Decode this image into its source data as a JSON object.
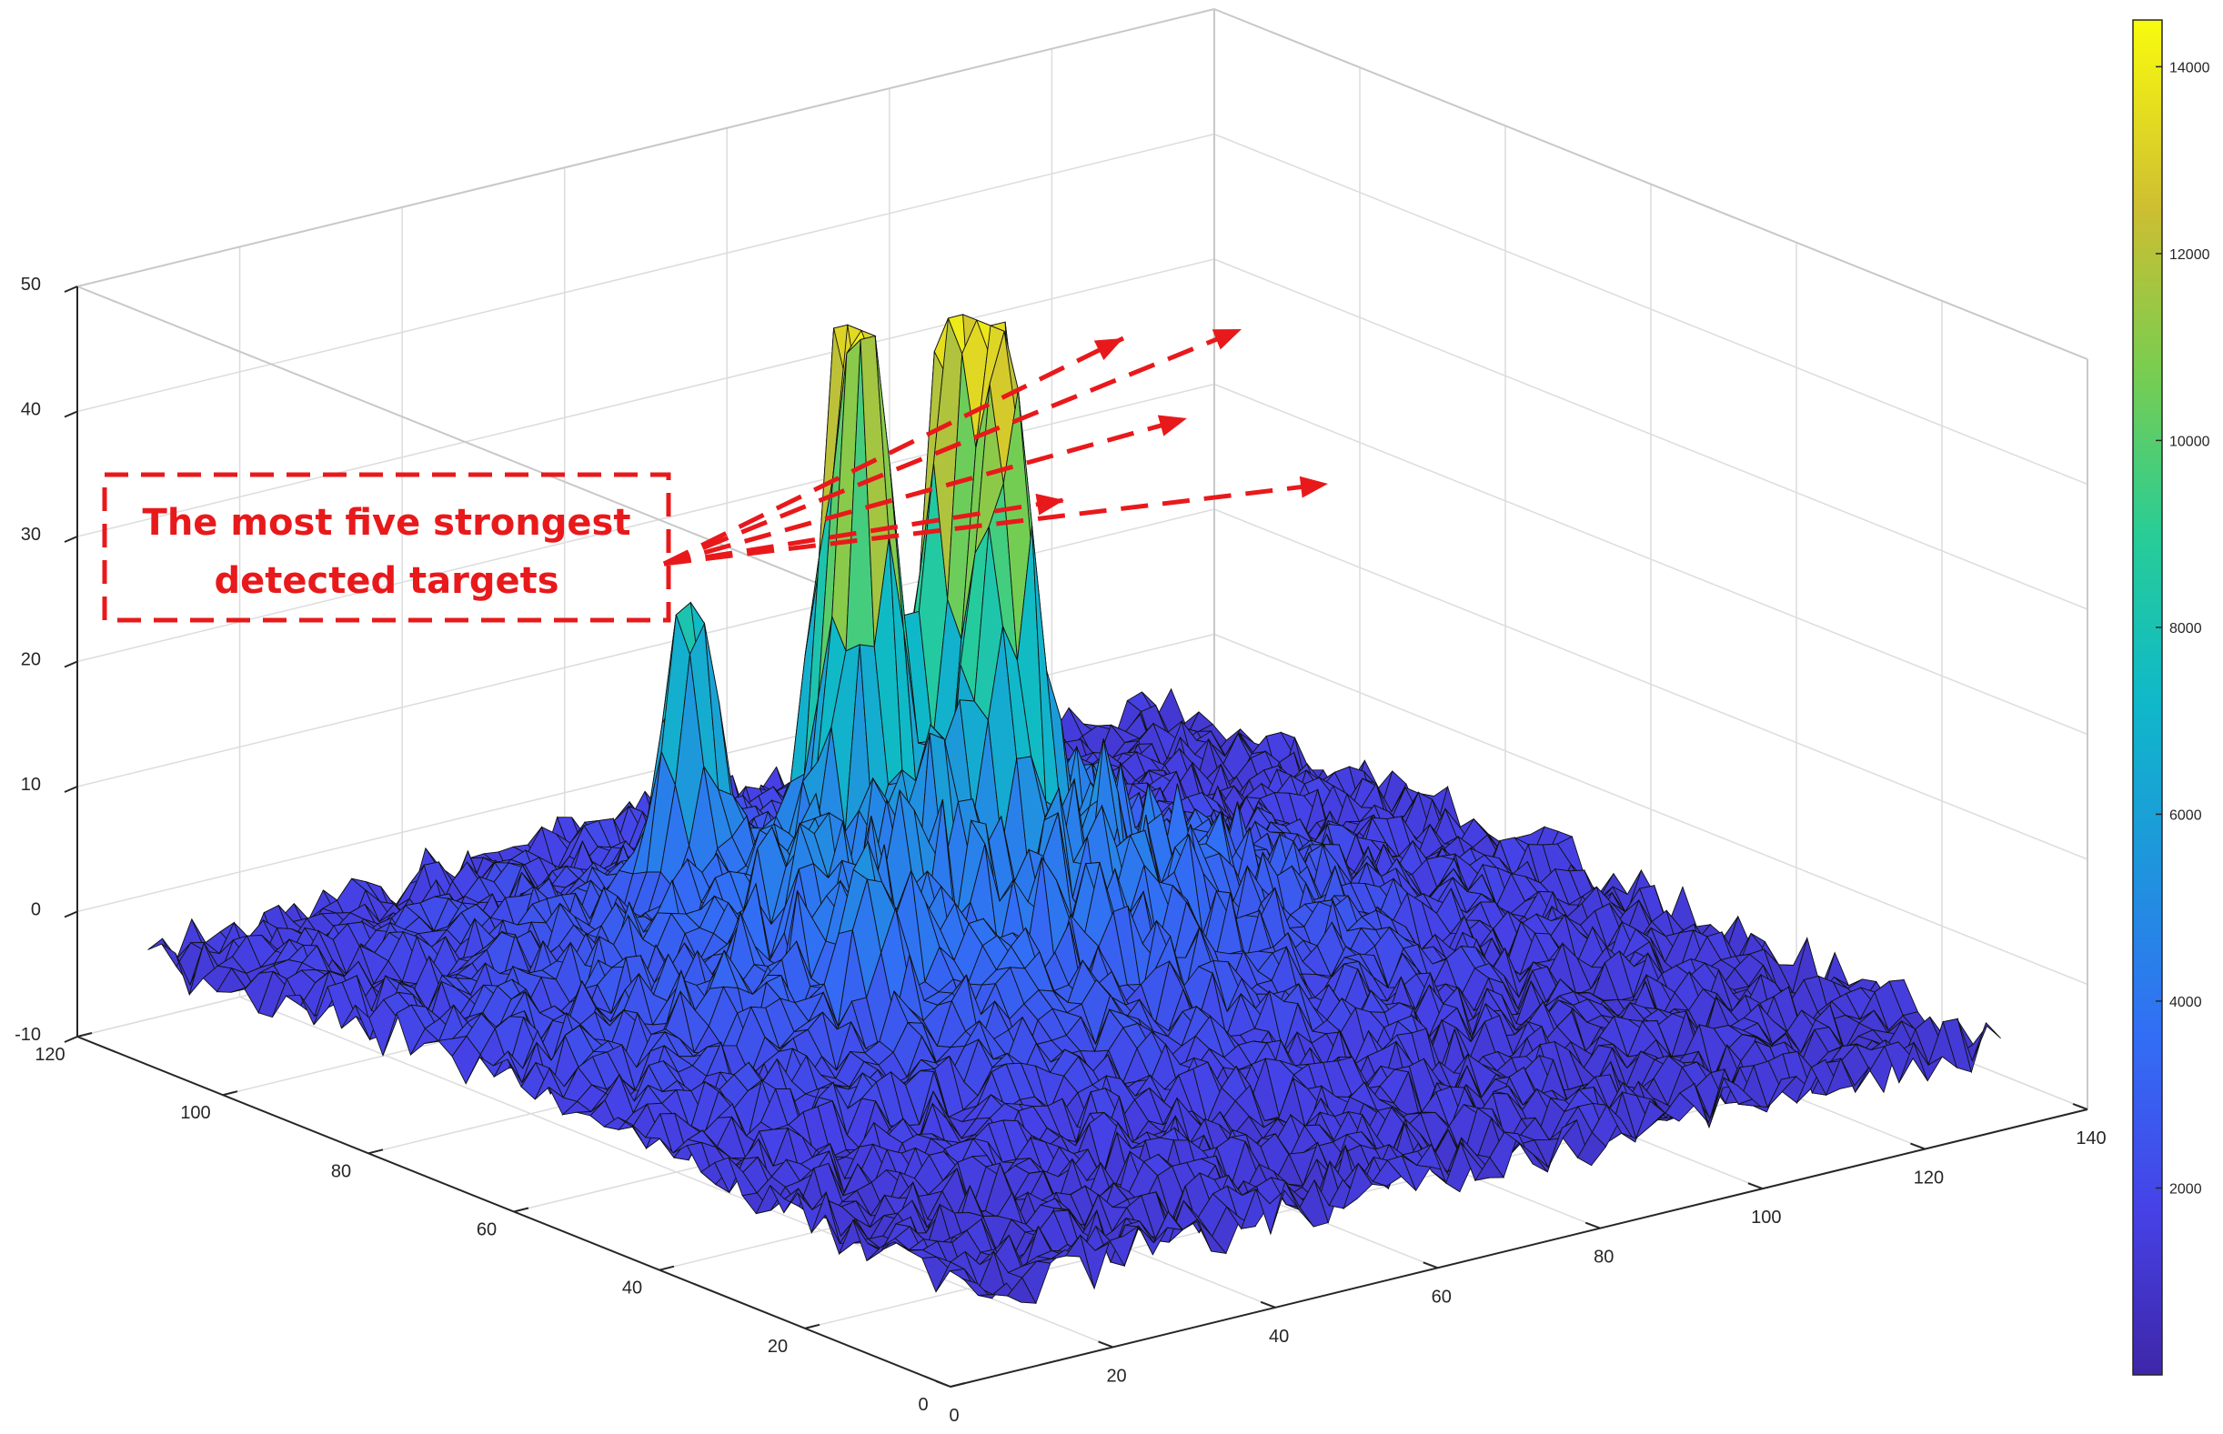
{
  "chart_data": {
    "type": "surface",
    "x_axis": {
      "range": [
        0,
        140
      ],
      "ticks": [
        "0",
        "20",
        "40",
        "60",
        "80",
        "100",
        "120",
        "140"
      ]
    },
    "y_axis": {
      "range": [
        0,
        120
      ],
      "ticks": [
        "0",
        "20",
        "40",
        "60",
        "80",
        "100",
        "120"
      ]
    },
    "z_axis": {
      "range": [
        -10,
        50
      ],
      "ticks": [
        "-10",
        "0",
        "10",
        "20",
        "30",
        "40",
        "50"
      ]
    },
    "grid": true,
    "colormap": "parula",
    "colorbar": {
      "range": [
        0,
        14500
      ],
      "ticks": [
        "2000",
        "4000",
        "6000",
        "8000",
        "10000",
        "12000",
        "14000"
      ],
      "location": "right"
    },
    "background_noise_level_z": [
      -8,
      4
    ],
    "peaks": [
      {
        "x": 56,
        "y": 74,
        "z": 47
      },
      {
        "x": 66,
        "y": 74,
        "z": 46
      },
      {
        "x": 57,
        "y": 79,
        "z": 38
      },
      {
        "x": 68,
        "y": 70,
        "z": 37
      },
      {
        "x": 66,
        "y": 66,
        "z": 33
      },
      {
        "x": 45,
        "y": 86,
        "z": 26
      },
      {
        "x": 40,
        "y": 55,
        "z": 9
      }
    ],
    "annotation": {
      "text_lines": [
        "The most five strongest",
        "detected targets"
      ],
      "color": "#e8191b",
      "arrow_count": 5
    }
  }
}
